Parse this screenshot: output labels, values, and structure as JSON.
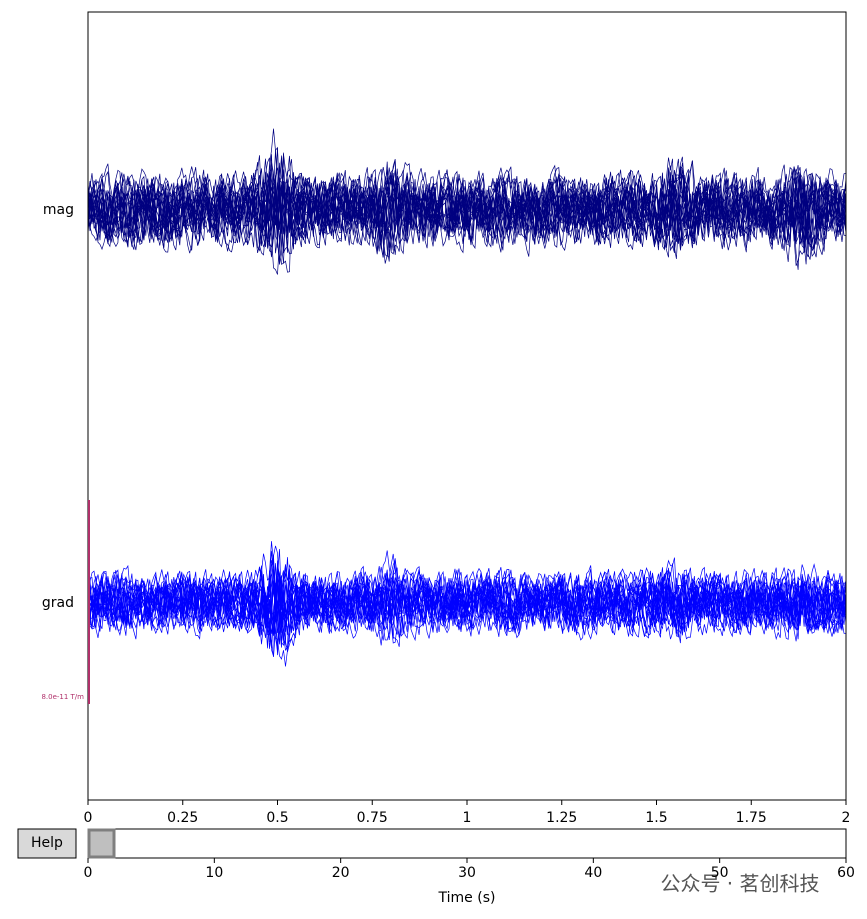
{
  "chart_data": {
    "type": "butterfly",
    "channels": [
      {
        "name": "mag",
        "color": "#000080"
      },
      {
        "name": "grad",
        "color": "#0000ff"
      }
    ],
    "scale_label": "8.0e-11 T/m",
    "xlim": [
      0,
      2
    ],
    "xticks": [
      0,
      0.25,
      0.5,
      0.75,
      1,
      1.25,
      1.5,
      1.75,
      2
    ],
    "scrollbar": {
      "xlim": [
        0,
        60
      ],
      "xticks": [
        0,
        10,
        20,
        30,
        40,
        50,
        60
      ],
      "xlabel": "Time (s)"
    },
    "button": "Help",
    "watermark": "公众号 · 茗创科技"
  }
}
